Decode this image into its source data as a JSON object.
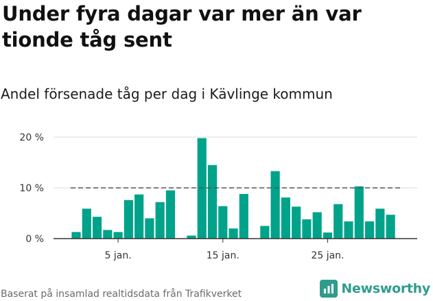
{
  "header": {
    "title": "Under fyra dagar var mer än var tionde tåg sent",
    "subtitle": "Andel försenade tåg per dag i Kävlinge kommun"
  },
  "footer": {
    "source": "Baserat på insamlad realtidsdata från Trafikverket",
    "brand": "Newsworthy"
  },
  "colors": {
    "bar": "#00a38a",
    "reference_line": "#555555",
    "grid": "#d9d9d9",
    "brand": "#2f9c8d"
  },
  "icons": {
    "brand_logo": "newsworthy-logo-icon"
  },
  "chart_data": {
    "type": "bar",
    "x_unit": "day of January",
    "x": [
      1,
      2,
      3,
      4,
      5,
      6,
      7,
      8,
      9,
      10,
      11,
      12,
      13,
      14,
      15,
      16,
      17,
      18,
      19,
      20,
      21,
      22,
      23,
      24,
      25,
      26,
      27,
      28,
      29,
      30,
      31
    ],
    "values": [
      1.3,
      5.9,
      4.3,
      1.7,
      1.3,
      7.6,
      8.7,
      4.0,
      7.2,
      9.5,
      null,
      0.6,
      19.8,
      14.5,
      6.4,
      2.0,
      8.8,
      null,
      2.5,
      13.3,
      8.1,
      6.3,
      3.8,
      5.2,
      1.2,
      6.8,
      3.4,
      10.3,
      3.4,
      5.9,
      4.7
    ],
    "reference_value": 10,
    "ylim": [
      0,
      20
    ],
    "yticks": [
      0,
      10,
      20
    ],
    "ytick_labels": [
      "0 %",
      "10 %",
      "20 %"
    ],
    "xticks": [
      5,
      15,
      25
    ],
    "xtick_labels": [
      "5 jan.",
      "15 jan.",
      "25 jan."
    ],
    "grid": "horizontal",
    "xlabel": "",
    "ylabel": ""
  }
}
